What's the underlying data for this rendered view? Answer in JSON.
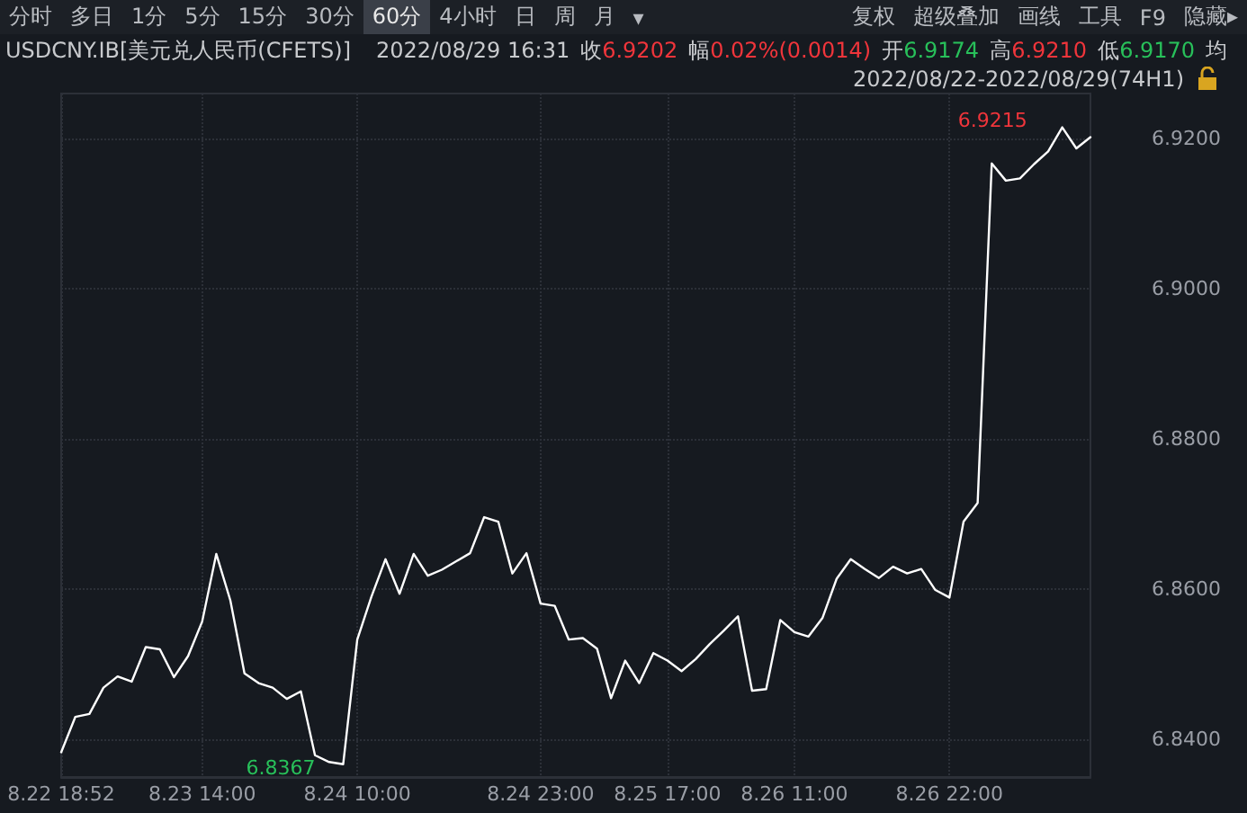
{
  "chart_data": {
    "type": "line",
    "title": "USDCNY.IB[美元兑人民币(CFETS)]",
    "subtitle": "2022/08/22-2022/08/29(74H1)",
    "categories": [
      "8.22 18:52",
      null,
      null,
      null,
      null,
      null,
      null,
      null,
      null,
      null,
      "8.23 14:00",
      null,
      null,
      null,
      null,
      null,
      null,
      null,
      null,
      null,
      null,
      "8.24 10:00",
      null,
      null,
      null,
      null,
      null,
      null,
      null,
      null,
      null,
      null,
      null,
      null,
      "8.24 23:00",
      null,
      null,
      null,
      null,
      null,
      null,
      null,
      null,
      "8.25 17:00",
      null,
      null,
      null,
      null,
      null,
      null,
      null,
      null,
      "8.26 11:00",
      null,
      null,
      null,
      null,
      null,
      null,
      null,
      null,
      null,
      null,
      "8.26 22:00",
      null,
      null,
      null,
      null,
      null,
      null,
      null,
      null,
      null,
      null
    ],
    "series": [
      {
        "color": "#ffffff",
        "values": [
          6.8383,
          6.843,
          6.8434,
          6.8469,
          6.8484,
          6.8477,
          6.8523,
          6.852,
          6.8483,
          6.8511,
          6.8557,
          6.8647,
          6.8585,
          6.8488,
          6.8475,
          6.8469,
          6.8454,
          6.8464,
          6.8379,
          6.837,
          6.8367,
          6.8533,
          6.859,
          6.864,
          6.8594,
          6.8647,
          6.8618,
          6.8626,
          6.8637,
          6.8648,
          6.8696,
          6.869,
          6.8621,
          6.8648,
          6.8581,
          6.8578,
          6.8533,
          6.8535,
          6.8521,
          6.8455,
          6.8505,
          6.8475,
          6.8515,
          6.8505,
          6.8491,
          6.8507,
          6.8527,
          6.8545,
          6.8564,
          6.8465,
          6.8467,
          6.8559,
          6.8543,
          6.8537,
          6.8562,
          6.8614,
          6.864,
          6.8627,
          6.8615,
          6.863,
          6.8621,
          6.8627,
          6.8599,
          6.8589,
          6.869,
          6.8715,
          6.9167,
          6.9144,
          6.9147,
          6.9166,
          6.9183,
          6.9215,
          6.9187,
          6.9202
        ]
      }
    ],
    "ylim": [
      6.835,
      6.926
    ],
    "yticks": [
      {
        "value": 6.84,
        "label": "6.8400"
      },
      {
        "value": 6.86,
        "label": "6.8600"
      },
      {
        "value": 6.88,
        "label": "6.8800"
      },
      {
        "value": 6.9,
        "label": "6.9000"
      },
      {
        "value": 6.92,
        "label": "6.9200"
      }
    ],
    "grid": true,
    "marker": "none",
    "line_style": "solid",
    "annotations": [
      "分时",
      "多日",
      "1分",
      "5分",
      "15分",
      "30分",
      "60分",
      "4小时",
      "日",
      "周",
      "月",
      "▾",
      "复权",
      "超级叠加",
      "画线",
      "工具",
      "F9",
      "隐藏▸",
      "2022/08/29 16:31",
      "收",
      "6.9202",
      "幅",
      "0.02%(0.0014)",
      "开",
      "6.9174",
      "高",
      "6.9210",
      "低",
      "6.9170",
      "均",
      "6.8367",
      "6.9215"
    ]
  }
}
